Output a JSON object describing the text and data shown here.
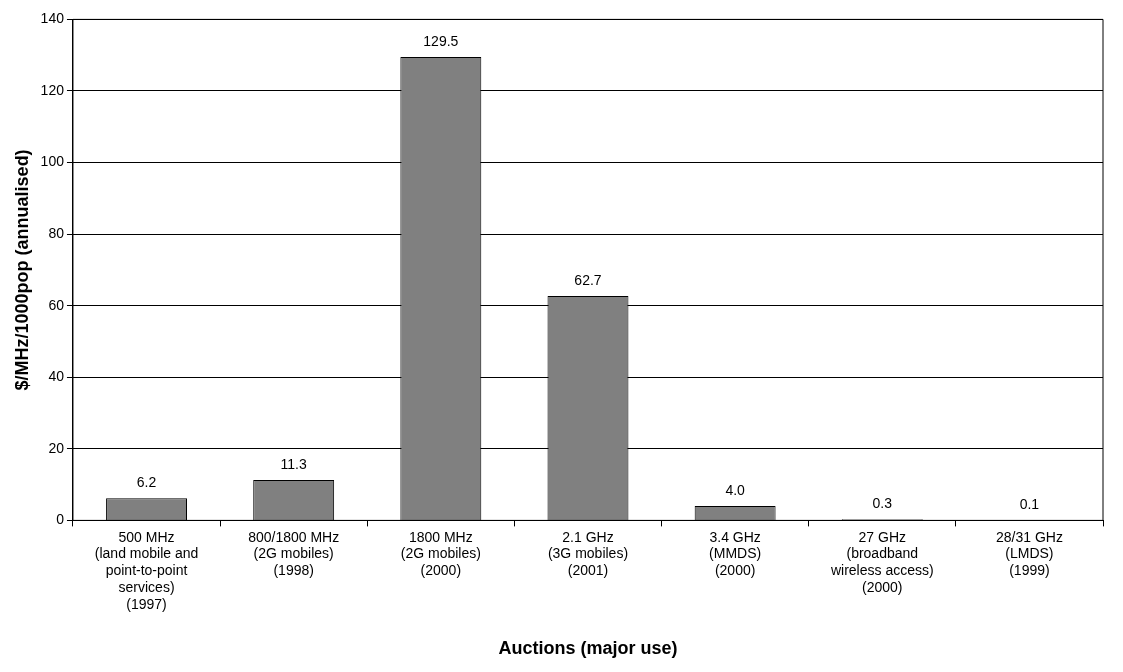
{
  "chart_data": {
    "type": "bar",
    "xlabel": "Auctions (major use)",
    "ylabel": "$/MHz/1000pop (annualised)",
    "categories": [
      "500 MHz\n(land mobile and\npoint-to-point\nservices)\n(1997)",
      "800/1800 MHz\n(2G mobiles)\n(1998)",
      "1800 MHz\n(2G mobiles)\n(2000)",
      "2.1 GHz\n(3G mobiles)\n(2001)",
      "3.4 GHz\n(MMDS)\n(2000)",
      "27 GHz\n(broadband\nwireless access)\n(2000)",
      "28/31 GHz\n(LMDS)\n(1999)"
    ],
    "values": [
      6.2,
      11.3,
      129.5,
      62.7,
      4.0,
      0.3,
      0.1
    ],
    "value_labels": [
      "6.2",
      "11.3",
      "129.5",
      "62.7",
      "4.0",
      "0.3",
      "0.1"
    ],
    "color": "#808080",
    "ylim": [
      0,
      140
    ],
    "yticks": [
      0,
      20,
      40,
      60,
      80,
      100,
      120,
      140
    ],
    "grid": "y"
  }
}
